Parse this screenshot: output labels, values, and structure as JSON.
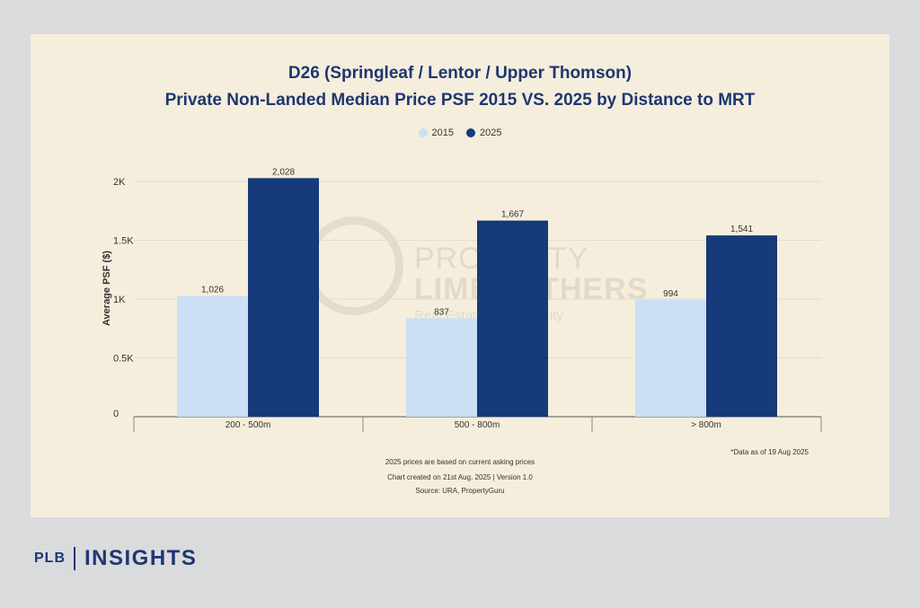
{
  "title_line1": "D26 (Springleaf / Lentor / Upper Thomson)",
  "title_line2": "Private Non-Landed Median Price PSF 2015 VS. 2025 by Distance to MRT",
  "watermark": {
    "line1": "PROPERTY",
    "line2": "LIMBROTHERS",
    "line3": "Real Estate with Integrity"
  },
  "footnotes": {
    "data_as_of": "*Data as of 19 Aug 2025",
    "note1": "2025 prices are based on current asking prices",
    "note2": "Chart created on 21st Aug. 2025 | Version 1.0",
    "note3": "Source: URA, PropertyGuru"
  },
  "brand": {
    "plb": "PLB",
    "insights": "INSIGHTS"
  },
  "chart_data": {
    "type": "bar",
    "title": "D26 (Springleaf / Lentor / Upper Thomson) Private Non-Landed Median Price PSF 2015 VS. 2025 by Distance to MRT",
    "categories": [
      "200 - 500m",
      "500 - 800m",
      "> 800m"
    ],
    "series": [
      {
        "name": "2015",
        "values": [
          1026,
          837,
          994
        ],
        "labels": [
          "1,026",
          "837",
          "994"
        ],
        "color": "#cbdff5"
      },
      {
        "name": "2025",
        "values": [
          2028,
          1667,
          1541
        ],
        "labels": [
          "2,028",
          "1,667",
          "1,541"
        ],
        "color": "#163a7a"
      }
    ],
    "xlabel": "",
    "ylabel": "Average PSF ($)",
    "ylim": [
      0,
      2000
    ],
    "yticks": [
      0,
      500,
      1000,
      1500,
      2000
    ],
    "ytick_labels": [
      "0",
      "0.5K",
      "1K",
      "1.5K",
      "2K"
    ],
    "grid": true,
    "legend": "top-center"
  }
}
